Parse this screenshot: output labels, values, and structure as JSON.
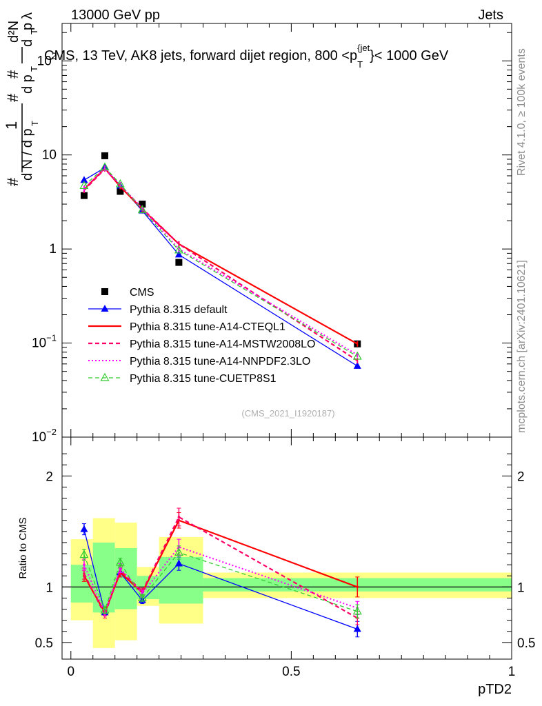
{
  "header": {
    "left": "13000 GeV pp",
    "right": "Jets"
  },
  "side_labels": {
    "rivet": "Rivet 4.1.0, ≥ 100k events",
    "mcplots": "mcplots.cern.ch [arXiv:2401.10621]"
  },
  "colors": {
    "cms": "#000000",
    "default": "#0000ff",
    "cteq": "#ff0000",
    "mstw": "#ff0066",
    "nnpdf": "#ff00ff",
    "cuetp8": "#33cc33",
    "band_outer": "#ffff88",
    "band_inner": "#88ff88"
  },
  "chart_data": [
    {
      "type": "line",
      "panel": "main",
      "title": "CMS, 13 TeV, AK8 jets, forward dijet region, 800 <p_T^{jet}< 1000 GeV",
      "title_parts": {
        "pre": "CMS, 13 TeV, AK8 jets, forward dijet region, 800 <p",
        "sub": "T",
        "sup": "{jet",
        "post": "}< 1000 GeV"
      },
      "ylabel": "1/dN/dpT  d²N/dpT dλ",
      "yscale": "log",
      "ylim": [
        0.01,
        250
      ],
      "xlim": [
        -0.02,
        1.0
      ],
      "y_tick_labels": [
        "10^-2",
        "10^-1",
        "1",
        "10",
        "10^2"
      ],
      "watermark": "(CMS_2021_I1920187)",
      "bin_edges": [
        0.0,
        0.05,
        0.1,
        0.15,
        0.2,
        0.3,
        1.0
      ],
      "x": [
        0.03,
        0.077,
        0.112,
        0.162,
        0.245,
        0.65
      ],
      "series": [
        {
          "name": "CMS",
          "key": "cms",
          "values": [
            3.7,
            9.8,
            4.1,
            3.0,
            0.72,
            0.098
          ]
        },
        {
          "name": "Pythia 8.315 default",
          "key": "default",
          "values": [
            5.4,
            7.3,
            4.7,
            2.55,
            0.87,
            0.057
          ]
        },
        {
          "name": "Pythia 8.315 tune-A14-CTEQL1",
          "key": "cteq",
          "values": [
            4.3,
            7.2,
            4.6,
            2.65,
            1.13,
            0.098
          ]
        },
        {
          "name": "Pythia 8.315 tune-A14-MSTW2008LO",
          "key": "mstw",
          "values": [
            4.2,
            7.1,
            4.7,
            2.7,
            1.13,
            0.065
          ]
        },
        {
          "name": "Pythia 8.315 tune-A14-NNPDF2.3LO",
          "key": "nnpdf",
          "values": [
            4.4,
            7.2,
            4.8,
            2.7,
            1.0,
            0.075
          ]
        },
        {
          "name": "Pythia 8.315 tune-CUETP8S1",
          "key": "cuetp8",
          "values": [
            4.7,
            7.4,
            4.9,
            2.6,
            0.97,
            0.072
          ]
        }
      ]
    },
    {
      "type": "line",
      "panel": "ratio",
      "ylabel": "Ratio to CMS",
      "xlabel": "pTD2",
      "ylim": [
        0.35,
        2.35
      ],
      "xlim": [
        -0.02,
        1.0
      ],
      "x_tick_labels": [
        "0",
        "0.5",
        "1"
      ],
      "y_tick_labels": [
        "0.5",
        "1",
        "2"
      ],
      "bin_edges": [
        0.0,
        0.05,
        0.1,
        0.15,
        0.2,
        0.3,
        1.0
      ],
      "band_outer": [
        [
          0.7,
          1.43
        ],
        [
          0.45,
          1.62
        ],
        [
          0.52,
          1.58
        ],
        [
          0.83,
          1.18
        ],
        [
          0.67,
          1.45
        ],
        [
          0.9,
          1.13
        ]
      ],
      "band_inner": [
        [
          0.86,
          1.2
        ],
        [
          0.77,
          1.4
        ],
        [
          0.8,
          1.35
        ],
        [
          0.89,
          1.1
        ],
        [
          0.85,
          1.27
        ],
        [
          0.96,
          1.08
        ]
      ],
      "x": [
        0.03,
        0.077,
        0.112,
        0.162,
        0.245,
        0.65
      ],
      "series": [
        {
          "name": "Pythia 8.315 default",
          "key": "default",
          "values": [
            1.52,
            0.77,
            1.13,
            0.88,
            1.21,
            0.62
          ],
          "errors": [
            0.05,
            0.03,
            0.04,
            0.03,
            0.06,
            0.07
          ]
        },
        {
          "name": "Pythia 8.315 tune-A14-CTEQL1",
          "key": "cteq",
          "values": [
            1.1,
            0.77,
            1.13,
            0.95,
            1.6,
            1.0
          ],
          "errors": [
            0.05,
            0.03,
            0.04,
            0.03,
            0.07,
            0.09
          ]
        },
        {
          "name": "Pythia 8.315 tune-A14-MSTW2008LO",
          "key": "mstw",
          "values": [
            1.12,
            0.75,
            1.15,
            0.96,
            1.63,
            0.72
          ],
          "errors": [
            0.05,
            0.03,
            0.04,
            0.03,
            0.08,
            0.06
          ]
        },
        {
          "name": "Pythia 8.315 tune-A14-NNPDF2.3LO",
          "key": "nnpdf",
          "values": [
            1.2,
            0.77,
            1.17,
            0.94,
            1.36,
            0.81
          ],
          "errors": [
            0.05,
            0.03,
            0.04,
            0.03,
            0.07,
            0.06
          ]
        },
        {
          "name": "Pythia 8.315 tune-CUETP8S1",
          "key": "cuetp8",
          "values": [
            1.29,
            0.79,
            1.22,
            0.9,
            1.31,
            0.78
          ],
          "errors": [
            0.05,
            0.03,
            0.04,
            0.03,
            0.06,
            0.06
          ]
        }
      ]
    }
  ]
}
